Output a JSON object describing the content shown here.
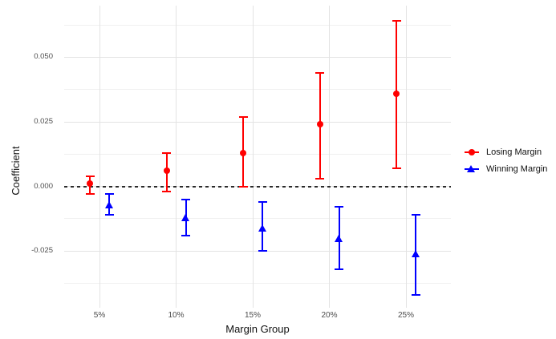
{
  "chart_data": {
    "type": "scatter",
    "subtype": "pointrange-errorbar",
    "title": "",
    "xlabel": "Margin Group",
    "ylabel": "Coefficient",
    "categories": [
      "5%",
      "10%",
      "15%",
      "20%",
      "25%"
    ],
    "series": [
      {
        "name": "Losing Margin",
        "marker": "circle",
        "color": "#ff0000",
        "estimates": [
          0.001,
          0.006,
          0.013,
          0.024,
          0.036
        ],
        "ci_low": [
          -0.003,
          -0.002,
          0.0,
          0.003,
          0.007
        ],
        "ci_high": [
          0.004,
          0.013,
          0.027,
          0.044,
          0.064
        ]
      },
      {
        "name": "Winning Margin",
        "marker": "triangle",
        "color": "#0000ff",
        "estimates": [
          -0.007,
          -0.012,
          -0.016,
          -0.02,
          -0.026
        ],
        "ci_low": [
          -0.011,
          -0.019,
          -0.025,
          -0.032,
          -0.042
        ],
        "ci_high": [
          -0.003,
          -0.005,
          -0.006,
          -0.008,
          -0.011
        ]
      }
    ],
    "y_major_ticks": [
      {
        "value": 0.05,
        "label": "0.050"
      },
      {
        "value": 0.025,
        "label": "0.025"
      },
      {
        "value": 0.0,
        "label": "0.000"
      },
      {
        "value": -0.025,
        "label": "-0.025"
      }
    ],
    "y_minor_ticks": [
      0.0625,
      0.0375,
      0.0125,
      -0.0125,
      -0.0375
    ],
    "ylim": [
      -0.047,
      0.07
    ],
    "reference_line": {
      "y": 0,
      "style": "dashed",
      "color": "#2b2b2b"
    },
    "grid": true,
    "legend_position": "right",
    "background_color": "#ffffff",
    "gridline_color": "#e3e3e3"
  }
}
